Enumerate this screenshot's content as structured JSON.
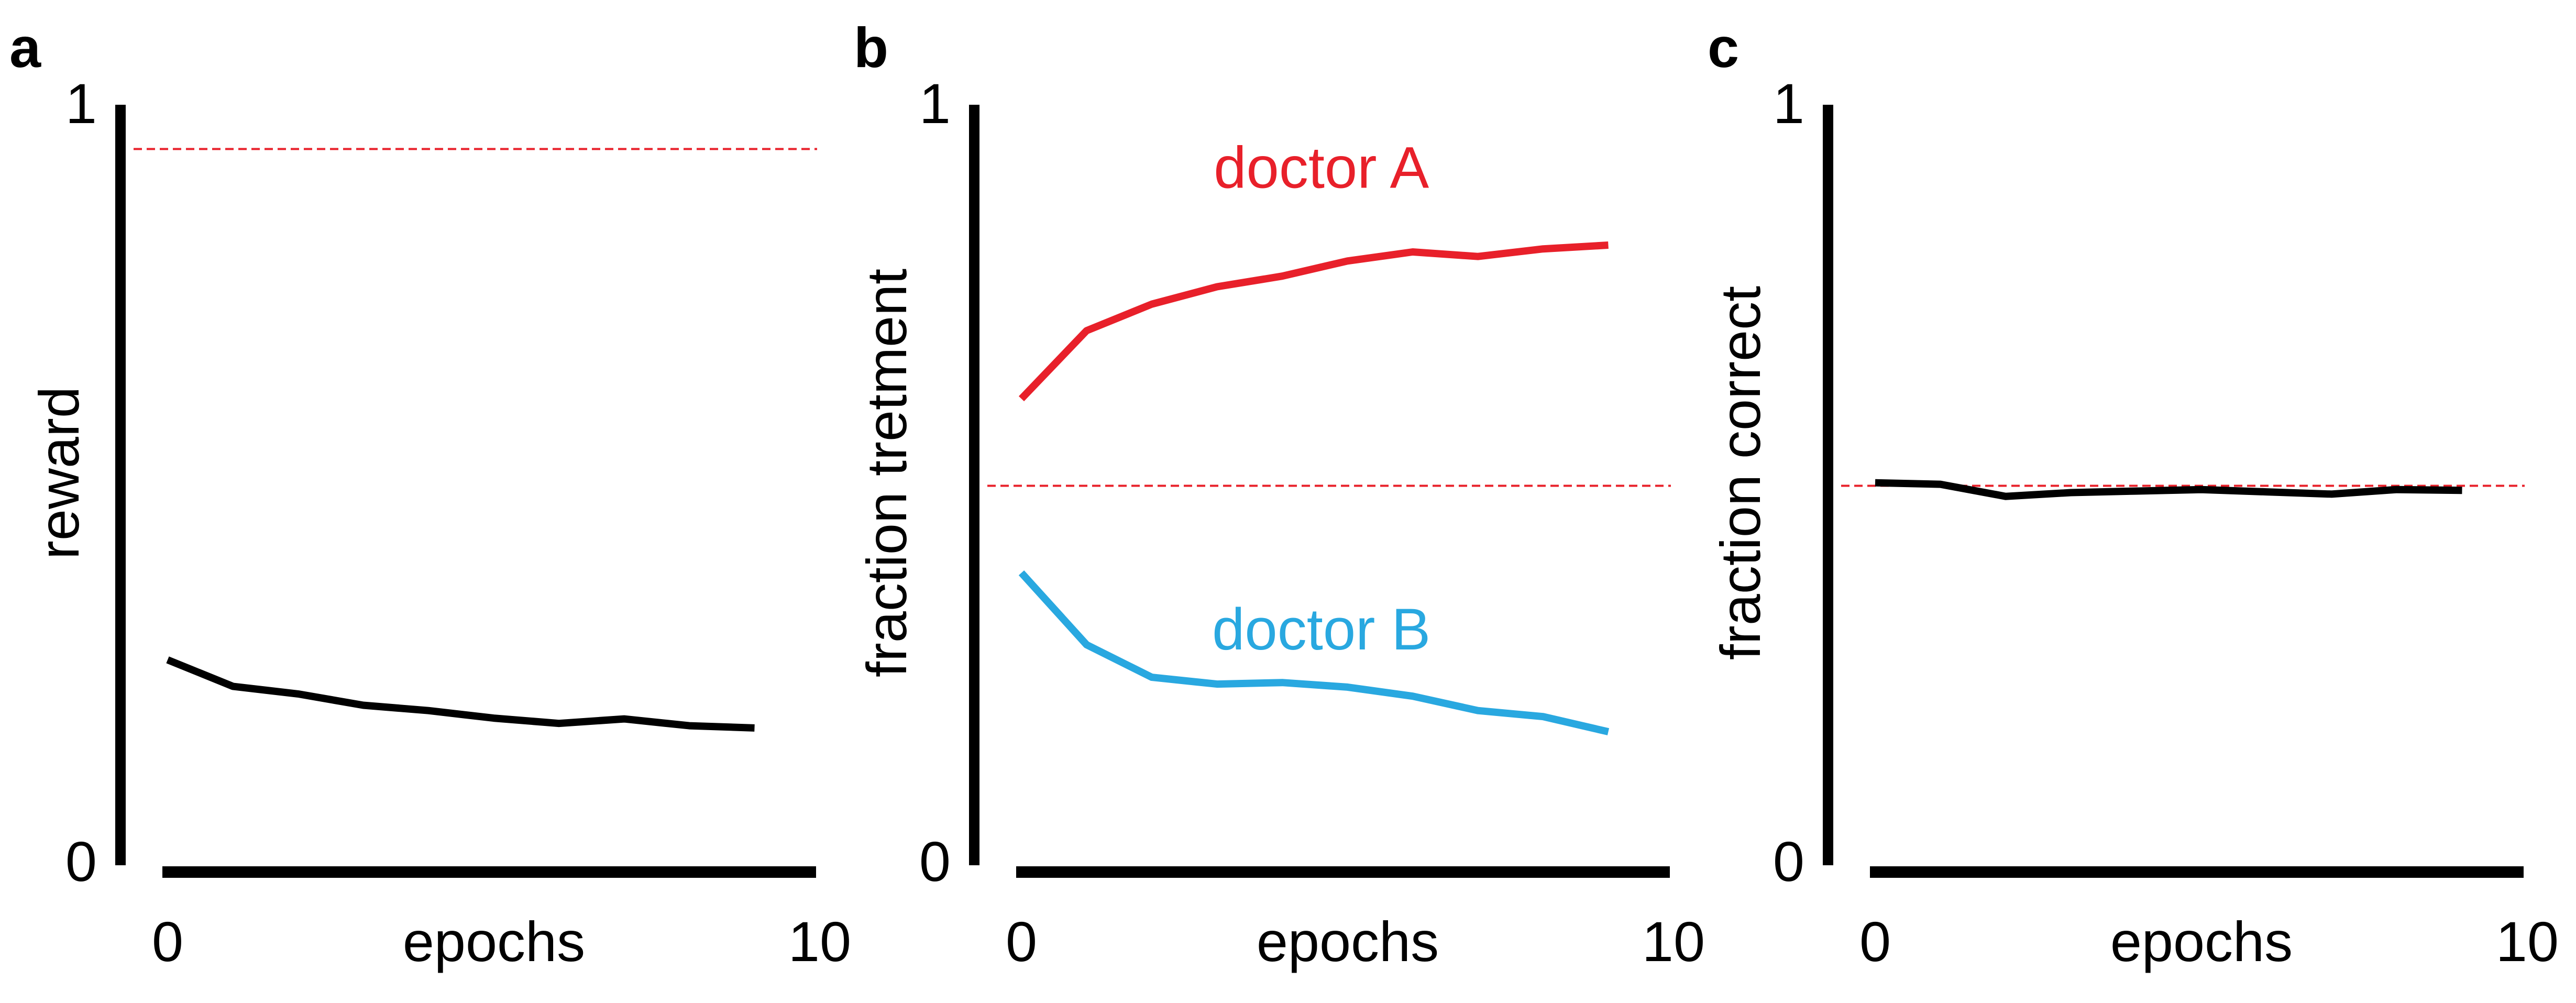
{
  "chart_data": [
    {
      "panel_label": "a",
      "type": "line",
      "xlabel": "epochs",
      "ylabel": "reward",
      "xlim": [
        0,
        10
      ],
      "ylim": [
        0,
        1
      ],
      "x_ticks": [
        "0",
        "10"
      ],
      "y_ticks": [
        "0",
        "1"
      ],
      "grid": false,
      "reference_line": {
        "y": 0.945,
        "color": "#e8202a",
        "style": "dashed"
      },
      "series": [
        {
          "color": "#000000",
          "x": [
            0,
            1,
            2,
            3,
            4,
            5,
            6,
            7,
            8,
            9
          ],
          "y": [
            0.27,
            0.235,
            0.225,
            0.21,
            0.203,
            0.193,
            0.186,
            0.192,
            0.183,
            0.18
          ]
        }
      ],
      "annotations": []
    },
    {
      "panel_label": "b",
      "type": "line",
      "xlabel": "epochs",
      "ylabel": "fraction tretment",
      "xlim": [
        0,
        10
      ],
      "ylim": [
        0,
        1
      ],
      "x_ticks": [
        "0",
        "10"
      ],
      "y_ticks": [
        "0",
        "1"
      ],
      "grid": false,
      "reference_line": {
        "y": 0.5,
        "color": "#e8202a",
        "style": "dashed"
      },
      "series": [
        {
          "name": "doctor A",
          "color": "#e8202a",
          "x": [
            0,
            1,
            2,
            3,
            4,
            5,
            6,
            7,
            8,
            9
          ],
          "y": [
            0.615,
            0.705,
            0.74,
            0.763,
            0.777,
            0.797,
            0.809,
            0.803,
            0.813,
            0.818
          ]
        },
        {
          "name": "doctor B",
          "color": "#29a8e0",
          "x": [
            0,
            1,
            2,
            3,
            4,
            5,
            6,
            7,
            8,
            9
          ],
          "y": [
            0.385,
            0.29,
            0.247,
            0.238,
            0.24,
            0.234,
            0.222,
            0.203,
            0.195,
            0.175
          ]
        }
      ],
      "annotations": [
        {
          "text": "doctor A",
          "color": "#e8202a",
          "x": 4.6,
          "y": 0.92
        },
        {
          "text": "doctor B",
          "color": "#29a8e0",
          "x": 4.6,
          "y": 0.31
        }
      ]
    },
    {
      "panel_label": "c",
      "type": "line",
      "xlabel": "epochs",
      "ylabel": "fraction correct",
      "xlim": [
        0,
        10
      ],
      "ylim": [
        0,
        1
      ],
      "x_ticks": [
        "0",
        "10"
      ],
      "y_ticks": [
        "0",
        "1"
      ],
      "grid": false,
      "reference_line": {
        "y": 0.5,
        "color": "#e8202a",
        "style": "dashed"
      },
      "series": [
        {
          "color": "#000000",
          "x": [
            0,
            1,
            2,
            3,
            4,
            5,
            6,
            7,
            8,
            9
          ],
          "y": [
            0.504,
            0.502,
            0.486,
            0.491,
            0.493,
            0.495,
            0.492,
            0.489,
            0.495,
            0.494
          ]
        }
      ],
      "annotations": []
    }
  ]
}
